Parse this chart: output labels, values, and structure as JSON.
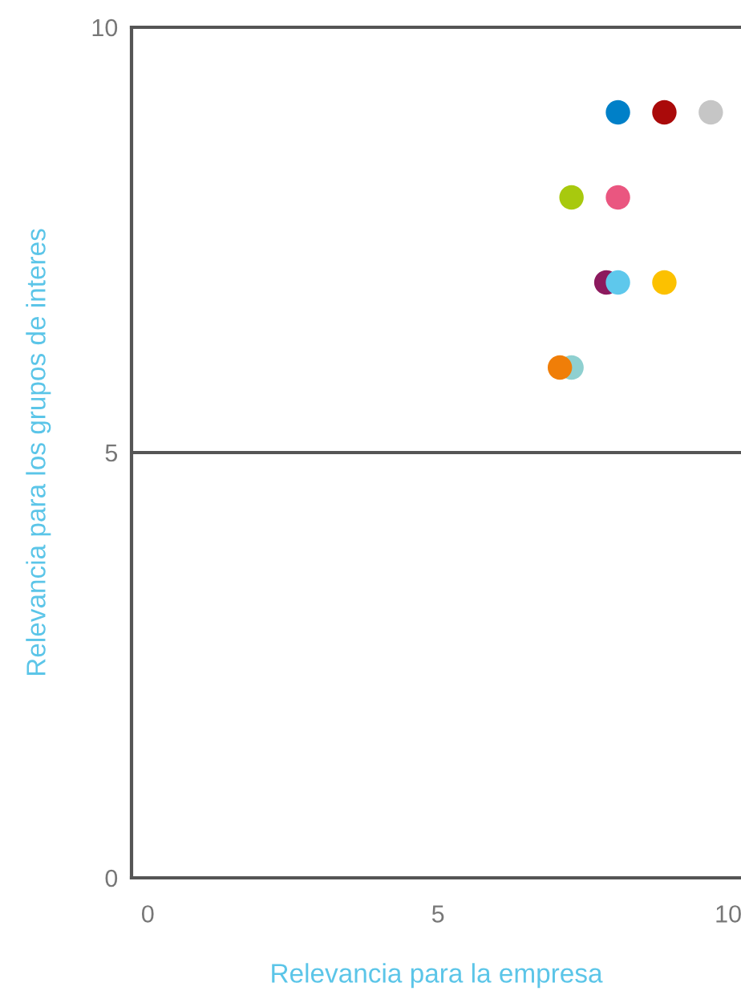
{
  "chart_data": {
    "type": "scatter",
    "xlabel": "Relevancia para la empresa",
    "ylabel": "Relevancia para los grupos de interes",
    "x": [
      8.1,
      8.9,
      9.7,
      7.3,
      8.1,
      7.9,
      8.1,
      8.9,
      7.3,
      7.1
    ],
    "series": [
      {
        "values": [
          9,
          9,
          9,
          8,
          8,
          7,
          7,
          7,
          6,
          6
        ],
        "colors": [
          "#0080c8",
          "#aa0a0a",
          "#c6c6c6",
          "#a8c90e",
          "#ea5680",
          "#8c1a5e",
          "#5ec8ec",
          "#fcc100",
          "#8fd0d0",
          "#f07e08"
        ]
      }
    ],
    "xlim": [
      -0.28,
      10.22
    ],
    "ylim": [
      0,
      10
    ],
    "xticks": [
      0,
      5,
      10
    ],
    "yticks": [
      0,
      5,
      10
    ],
    "ref_lines": [
      {
        "axis": "y",
        "value": 5,
        "color": "#555555"
      }
    ],
    "marker": "circle",
    "grid": false,
    "legend": false
  }
}
